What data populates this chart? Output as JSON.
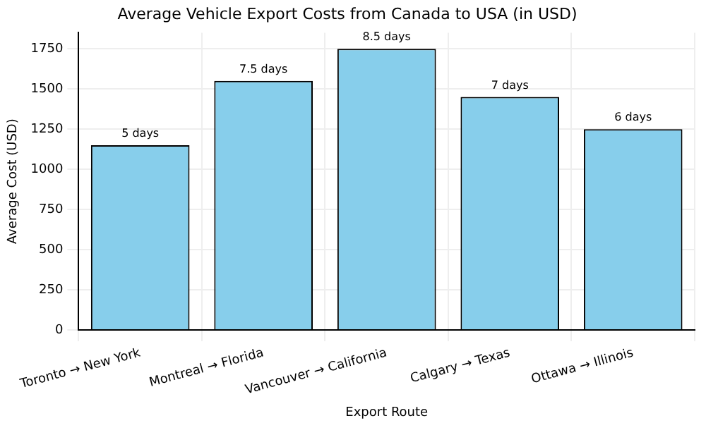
{
  "chart_data": {
    "type": "bar",
    "title": "Average Vehicle Export Costs from Canada to USA (in USD)",
    "xlabel": "Export Route",
    "ylabel": "Average Cost (USD)",
    "categories": [
      "Toronto → New York",
      "Montreal → Florida",
      "Vancouver → California",
      "Calgary → Texas",
      "Ottawa → Illinois"
    ],
    "values": [
      1150,
      1550,
      1750,
      1450,
      1250
    ],
    "annotations": [
      {
        "text": "5 days",
        "x": "Toronto → New York",
        "y": 1150
      },
      {
        "text": "7.5 days",
        "x": "Montreal → Florida",
        "y": 1550
      },
      {
        "text": "8.5 days",
        "x": "Vancouver → California",
        "y": 1750
      },
      {
        "text": "7 days",
        "x": "Calgary → Texas",
        "y": 1450
      },
      {
        "text": "6 days",
        "x": "Ottawa → Illinois",
        "y": 1250
      }
    ],
    "color": "#87ceeb",
    "ylim": [
      0,
      1850
    ],
    "yticks": [
      0,
      250,
      500,
      750,
      1000,
      1250,
      1500,
      1750
    ],
    "grid": true,
    "legend": false
  }
}
